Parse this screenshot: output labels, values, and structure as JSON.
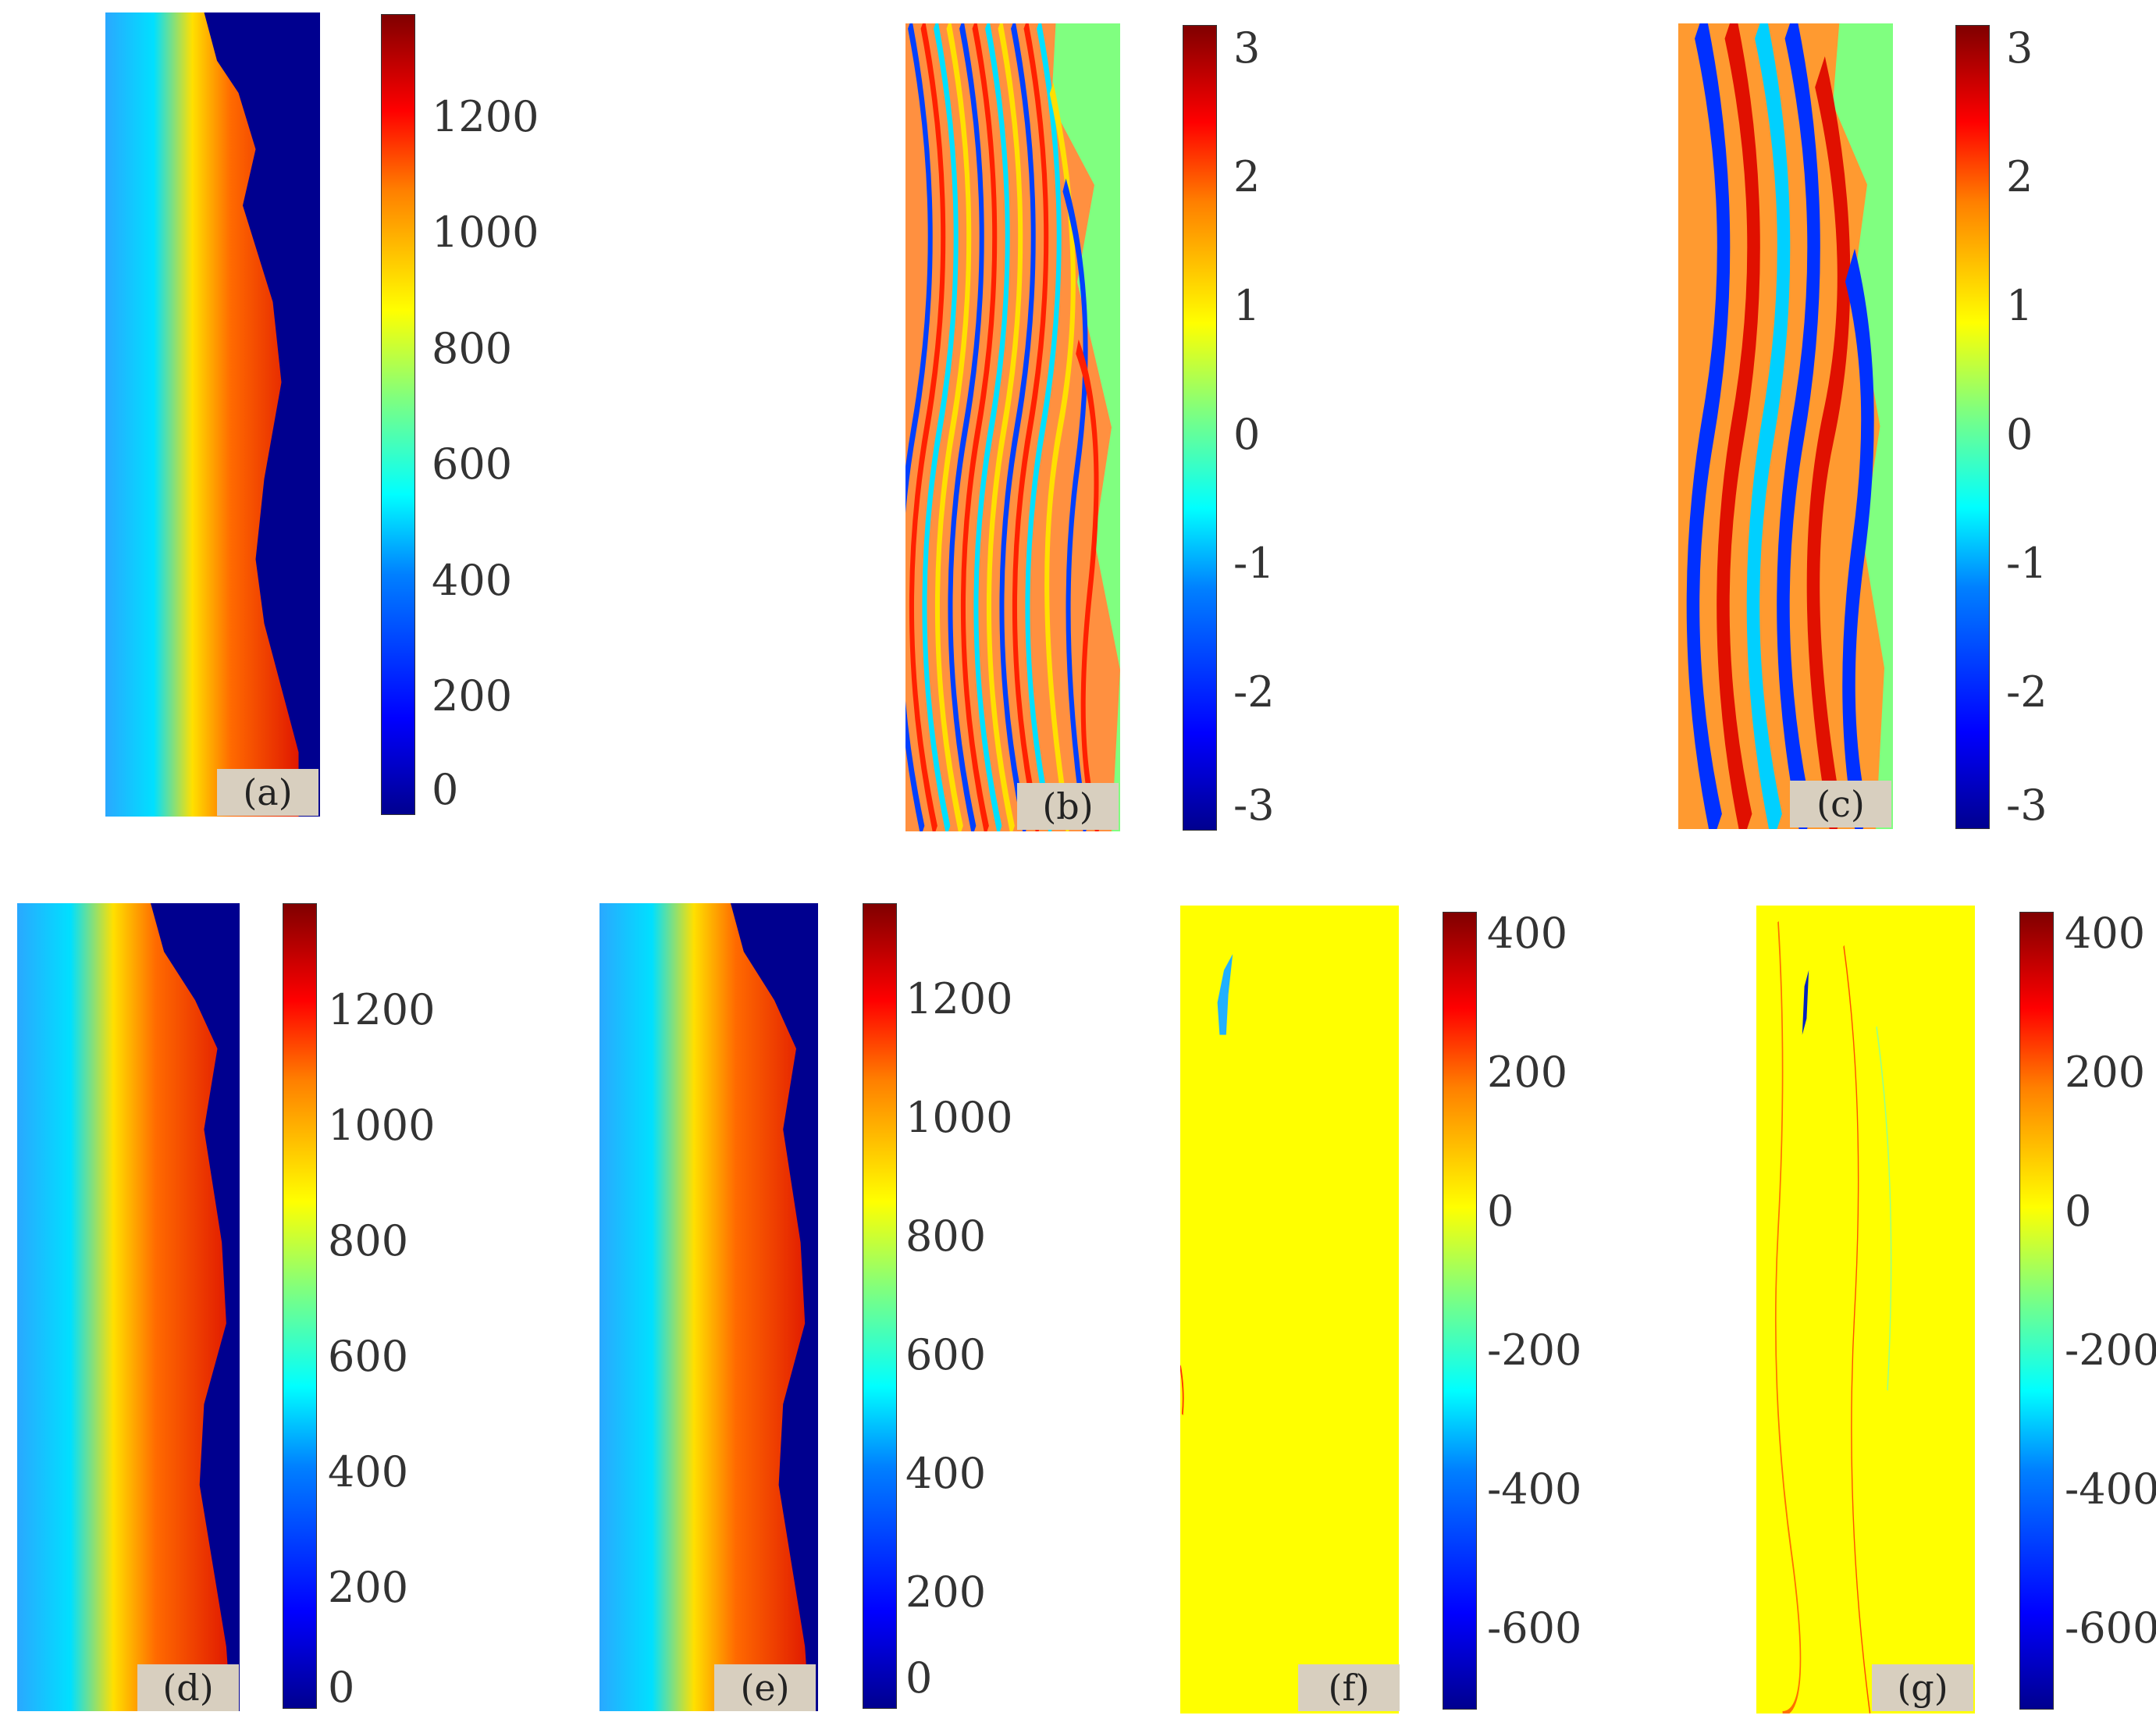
{
  "figure": {
    "panels": [
      {
        "id": "a",
        "label": "(a)",
        "kind": "height",
        "ticks": [
          "1200",
          "1000",
          "800",
          "600",
          "400",
          "200",
          "0"
        ]
      },
      {
        "id": "b",
        "label": "(b)",
        "kind": "phase-dense",
        "ticks": [
          "3",
          "2",
          "1",
          "0",
          "-1",
          "-2",
          "-3"
        ]
      },
      {
        "id": "c",
        "label": "(c)",
        "kind": "phase-coarse",
        "ticks": [
          "3",
          "2",
          "1",
          "0",
          "-1",
          "-2",
          "-3"
        ]
      },
      {
        "id": "d",
        "label": "(d)",
        "kind": "height",
        "ticks": [
          "1200",
          "1000",
          "800",
          "600",
          "400",
          "200",
          "0"
        ]
      },
      {
        "id": "e",
        "label": "(e)",
        "kind": "height",
        "ticks": [
          "1200",
          "1000",
          "800",
          "600",
          "400",
          "200",
          "0"
        ]
      },
      {
        "id": "f",
        "label": "(f)",
        "kind": "error-small",
        "ticks": [
          "400",
          "200",
          "0",
          "-200",
          "-400",
          "-600"
        ]
      },
      {
        "id": "g",
        "label": "(g)",
        "kind": "error-lines",
        "ticks": [
          "400",
          "200",
          "0",
          "-200",
          "-400",
          "-600"
        ]
      }
    ]
  },
  "colors": {
    "colormap": "jet",
    "dark_blue": "#00008f",
    "phase_background": "#80ff80",
    "error_background": "#ffff00",
    "label_box": "#d8cfbf"
  }
}
